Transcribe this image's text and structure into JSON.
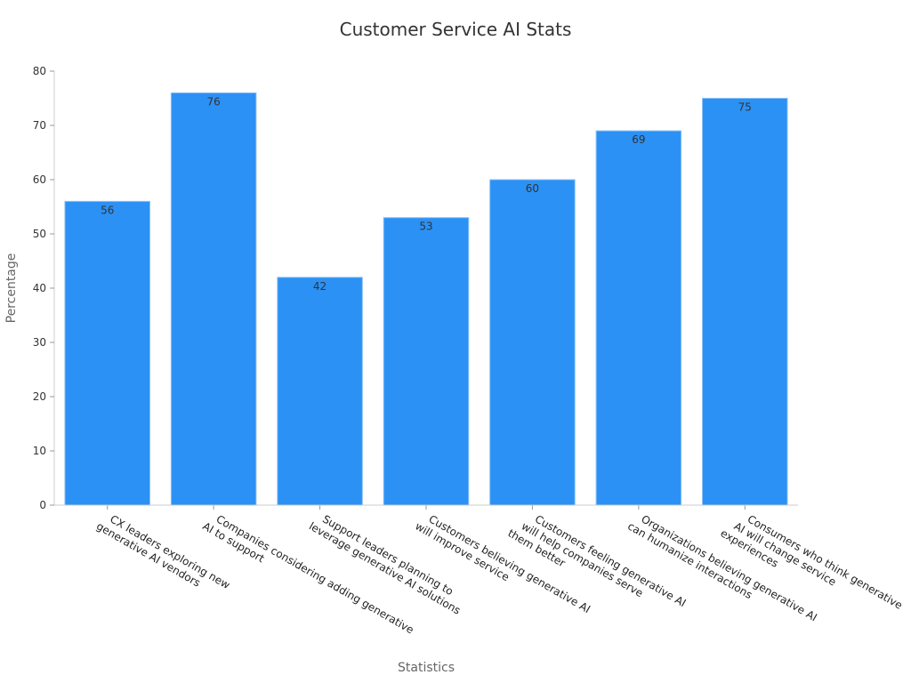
{
  "chart_data": {
    "type": "bar",
    "title": "Customer Service AI Stats",
    "xlabel": "Statistics",
    "ylabel": "Percentage",
    "ylim": [
      0,
      80
    ],
    "yticks": [
      0,
      10,
      20,
      30,
      40,
      50,
      60,
      70,
      80
    ],
    "categories": [
      [
        "CX leaders exploring new",
        "generative AI vendors"
      ],
      [
        "Companies considering adding generative",
        "AI to support"
      ],
      [
        "Support leaders planning to",
        "leverage generative AI solutions"
      ],
      [
        "Customers believing generative AI",
        "will improve service"
      ],
      [
        "Customers feeling generative AI",
        "will help companies serve",
        "them better"
      ],
      [
        "Organizations believing generative AI",
        "can humanize interactions"
      ],
      [
        "Consumers who think generative",
        "AI will change service",
        "experiences"
      ]
    ],
    "values": [
      56,
      76,
      42,
      53,
      60,
      69,
      75
    ],
    "bar_color": "#2b91f5",
    "grid": false,
    "legend": "none"
  }
}
